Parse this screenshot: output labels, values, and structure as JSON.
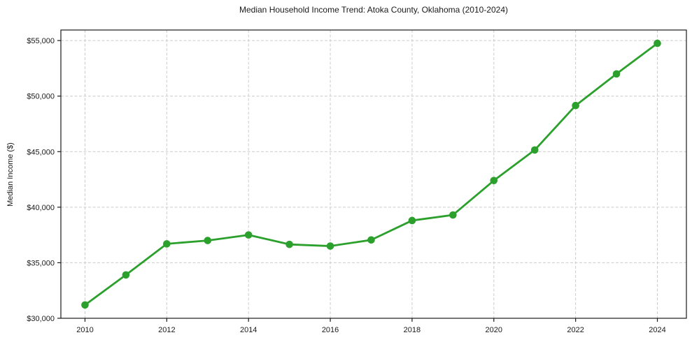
{
  "chart_data": {
    "type": "line",
    "title": "Median Household Income Trend: Atoka County, Oklahoma (2010-2024)",
    "xlabel": "",
    "ylabel": "Median Income ($)",
    "series_name": "Median Household Income",
    "x": [
      2010,
      2011,
      2012,
      2013,
      2014,
      2015,
      2016,
      2017,
      2018,
      2019,
      2020,
      2021,
      2022,
      2023,
      2024
    ],
    "values": [
      31200,
      33900,
      36700,
      37000,
      37500,
      36650,
      36500,
      37050,
      38800,
      39300,
      42400,
      45150,
      49150,
      52000,
      54750
    ],
    "xlim": [
      2009.41,
      2024.71
    ],
    "ylim": [
      30000,
      55950
    ],
    "yticks": [
      {
        "value": 30000,
        "label": "$30,000"
      },
      {
        "value": 35000,
        "label": "$35,000"
      },
      {
        "value": 40000,
        "label": "$40,000"
      },
      {
        "value": 45000,
        "label": "$45,000"
      },
      {
        "value": 50000,
        "label": "$50,000"
      },
      {
        "value": 55000,
        "label": "$55,000"
      }
    ],
    "xticks": [
      {
        "value": 2010,
        "label": "2010"
      },
      {
        "value": 2012,
        "label": "2012"
      },
      {
        "value": 2014,
        "label": "2014"
      },
      {
        "value": 2016,
        "label": "2016"
      },
      {
        "value": 2018,
        "label": "2018"
      },
      {
        "value": 2020,
        "label": "2020"
      },
      {
        "value": 2022,
        "label": "2022"
      },
      {
        "value": 2024,
        "label": "2024"
      }
    ],
    "grid": true,
    "legend": "none",
    "colors": {
      "line": "#2ca02c",
      "marker": "#2ca02c",
      "grid": "#cccccc",
      "axis": "#1a1a1a",
      "text": "#1a1a1a",
      "background": "#ffffff"
    }
  }
}
